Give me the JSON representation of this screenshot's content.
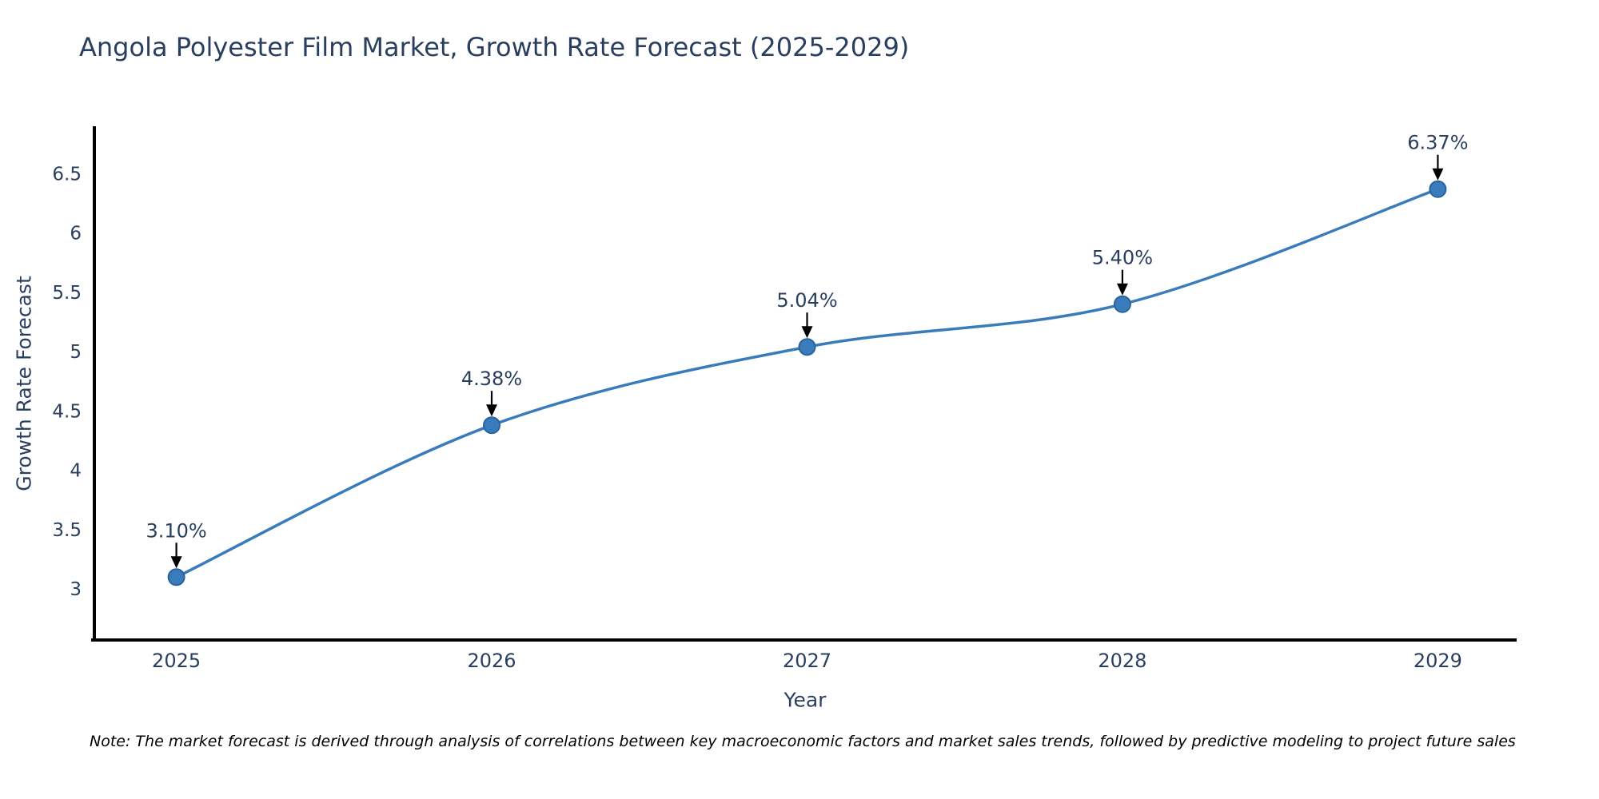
{
  "note": "Note: The market forecast is derived through analysis of correlations between key macroeconomic factors and market sales trends, followed by predictive modeling to project future sales",
  "chart_data": {
    "type": "line",
    "title": "Angola Polyester Film Market, Growth Rate Forecast (2025-2029)",
    "xlabel": "Year",
    "ylabel": "Growth Rate Forecast",
    "x": [
      2025,
      2026,
      2027,
      2028,
      2029
    ],
    "x_tick_labels": [
      "2025",
      "2026",
      "2027",
      "2028",
      "2029"
    ],
    "series": [
      {
        "name": "Growth Rate Forecast",
        "values": [
          3.1,
          4.38,
          5.04,
          5.4,
          6.37
        ]
      }
    ],
    "point_labels": [
      "3.10%",
      "4.38%",
      "5.04%",
      "5.40%",
      "6.37%"
    ],
    "y_ticks": [
      3,
      3.5,
      4,
      4.5,
      5,
      5.5,
      6,
      6.5
    ],
    "y_tick_labels": [
      "3",
      "3.5",
      "4",
      "4.5",
      "5",
      "5.5",
      "6",
      "6.5"
    ],
    "xlim": [
      2024.74,
      2029.25
    ],
    "ylim": [
      2.57,
      6.9
    ],
    "grid": false,
    "legend": false,
    "line_shape": "spline",
    "colors": {
      "line": "#3a7cbb",
      "marker_fill": "#3a7cbb",
      "marker_edge": "#2b639c",
      "axis": "#000000",
      "text": "#2a3f5f",
      "annotation_arrow": "#000000",
      "note_text": "#000000",
      "background": "#ffffff"
    }
  }
}
